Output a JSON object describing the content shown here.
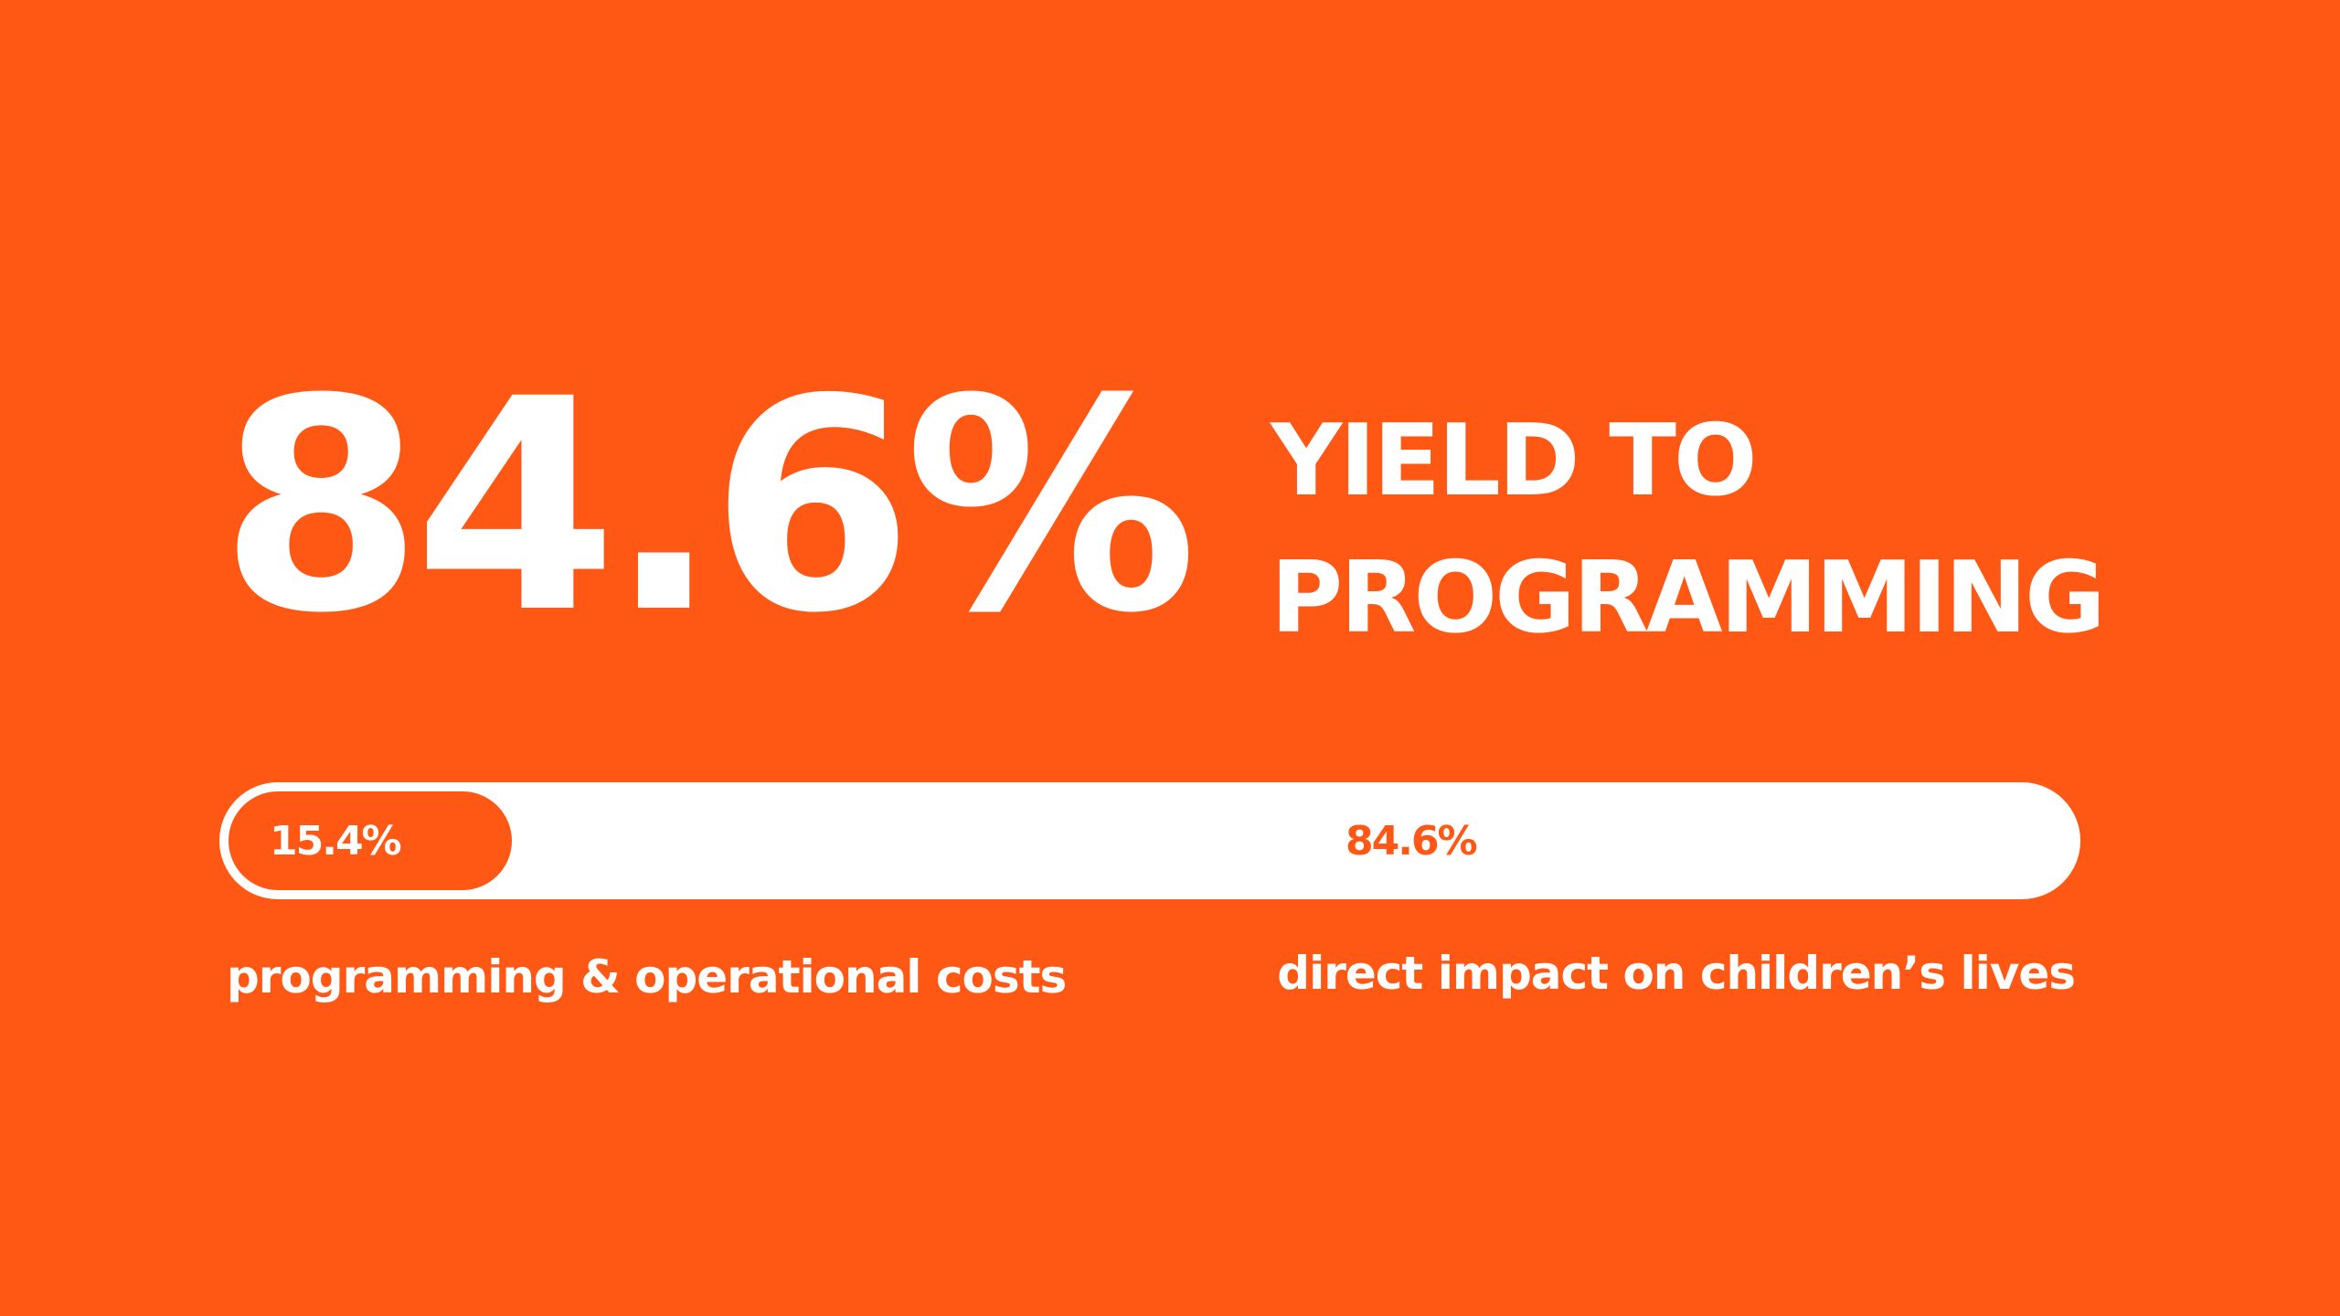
{
  "stat": {
    "value": "84.6%",
    "headline_line1": "YIELD TO",
    "headline_line2": "PROGRAMMING"
  },
  "progress": {
    "costs_fraction": 0.154,
    "costs_label": "15.4%",
    "impact_label": "84.6%"
  },
  "captions": {
    "left": "programming & operational costs",
    "right": "direct impact on children’s lives"
  },
  "colors": {
    "background": "#FF5714",
    "foreground": "#FFFFFF"
  }
}
